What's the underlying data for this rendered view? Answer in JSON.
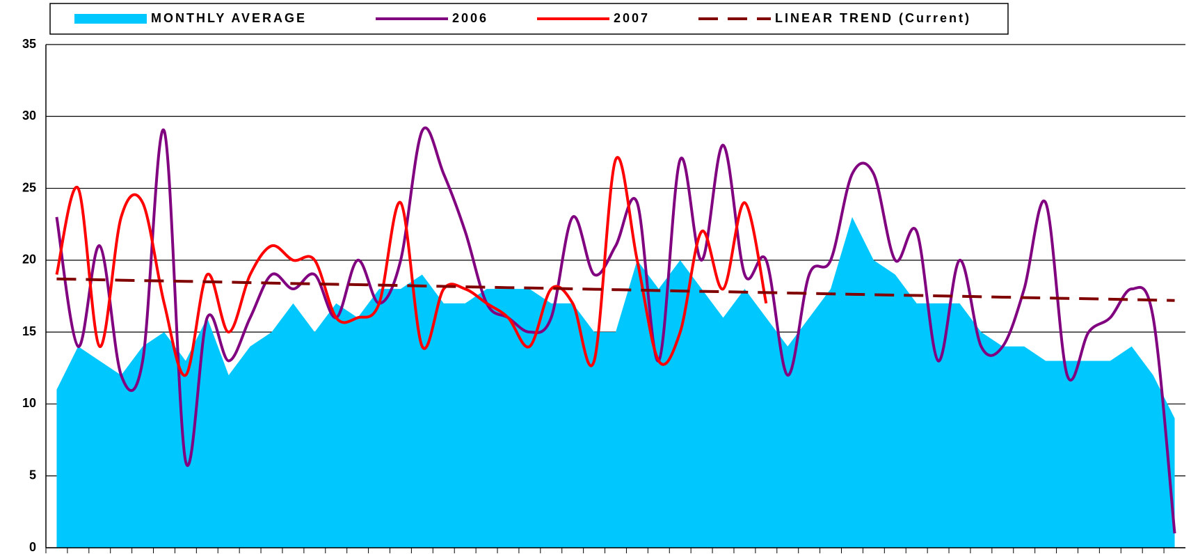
{
  "chart_data": {
    "type": "area-line",
    "categories": [
      null,
      null,
      null,
      null,
      null,
      null,
      null,
      null,
      null,
      null,
      null,
      null,
      null,
      null,
      null,
      null,
      null,
      null,
      null,
      null,
      null,
      null,
      null,
      null,
      null,
      null,
      null,
      null,
      null,
      null,
      null,
      null,
      null,
      null,
      null,
      null,
      null,
      null,
      null,
      null,
      null,
      null,
      null,
      null,
      null,
      null,
      null,
      null,
      null,
      null,
      null,
      null,
      null
    ],
    "series": [
      {
        "name": "MONTHLY AVERAGE",
        "kind": "area",
        "color": "#00c8ff",
        "values": [
          11,
          14,
          13,
          12,
          14,
          15,
          13,
          16,
          12,
          14,
          15,
          17,
          15,
          17,
          16,
          18,
          18,
          19,
          17,
          17,
          18,
          18,
          18,
          17,
          17,
          15,
          15,
          20,
          18,
          20,
          18,
          16,
          18,
          16,
          14,
          16,
          18,
          23,
          20,
          19,
          17,
          17,
          17,
          15,
          14,
          14,
          13,
          13,
          13,
          13,
          14,
          12,
          9
        ]
      },
      {
        "name": "2006",
        "kind": "line",
        "color": "#800080",
        "values": [
          23,
          14,
          21,
          12,
          13,
          29,
          6,
          16,
          13,
          16,
          19,
          18,
          19,
          16,
          20,
          17,
          20,
          29,
          26,
          22,
          17,
          16,
          15,
          16,
          23,
          19,
          21,
          24,
          13,
          27,
          20,
          28,
          19,
          20,
          12,
          19,
          20,
          26,
          26,
          20,
          22,
          13,
          20,
          14,
          14,
          18,
          24,
          12,
          15,
          16,
          18,
          16,
          1
        ]
      },
      {
        "name": "2007",
        "kind": "line",
        "color": "#ff0000",
        "values": [
          19,
          25,
          14,
          23,
          24,
          17,
          12,
          19,
          15,
          19,
          21,
          20,
          20,
          16,
          16,
          17,
          24,
          14,
          18,
          18,
          17,
          16,
          14,
          18,
          17,
          13,
          27,
          20,
          13,
          15,
          22,
          18,
          24,
          17,
          null,
          null,
          null,
          null,
          null,
          null,
          null,
          null,
          null,
          null,
          null,
          null,
          null,
          null,
          null,
          null,
          null,
          null,
          null
        ]
      },
      {
        "name": "LINEAR TREND (Current)",
        "kind": "dashed",
        "color": "#800000",
        "values": [
          18.7,
          18.67,
          18.64,
          18.61,
          18.58,
          18.56,
          18.53,
          18.5,
          18.47,
          18.44,
          18.41,
          18.38,
          18.35,
          18.32,
          18.3,
          18.27,
          18.24,
          18.21,
          18.18,
          18.15,
          18.12,
          18.09,
          18.07,
          18.04,
          18.01,
          17.98,
          17.95,
          17.92,
          17.89,
          17.86,
          17.83,
          17.81,
          17.78,
          17.75,
          17.72,
          17.69,
          17.66,
          17.63,
          17.6,
          17.57,
          17.55,
          17.52,
          17.49,
          17.46,
          17.43,
          17.4,
          17.37,
          17.34,
          17.32,
          17.29,
          17.26,
          17.23,
          17.2
        ]
      }
    ],
    "ylim": [
      0,
      35
    ],
    "yticks": [
      0,
      5,
      10,
      15,
      20,
      25,
      30,
      35
    ],
    "grid": true,
    "legend": "top"
  }
}
